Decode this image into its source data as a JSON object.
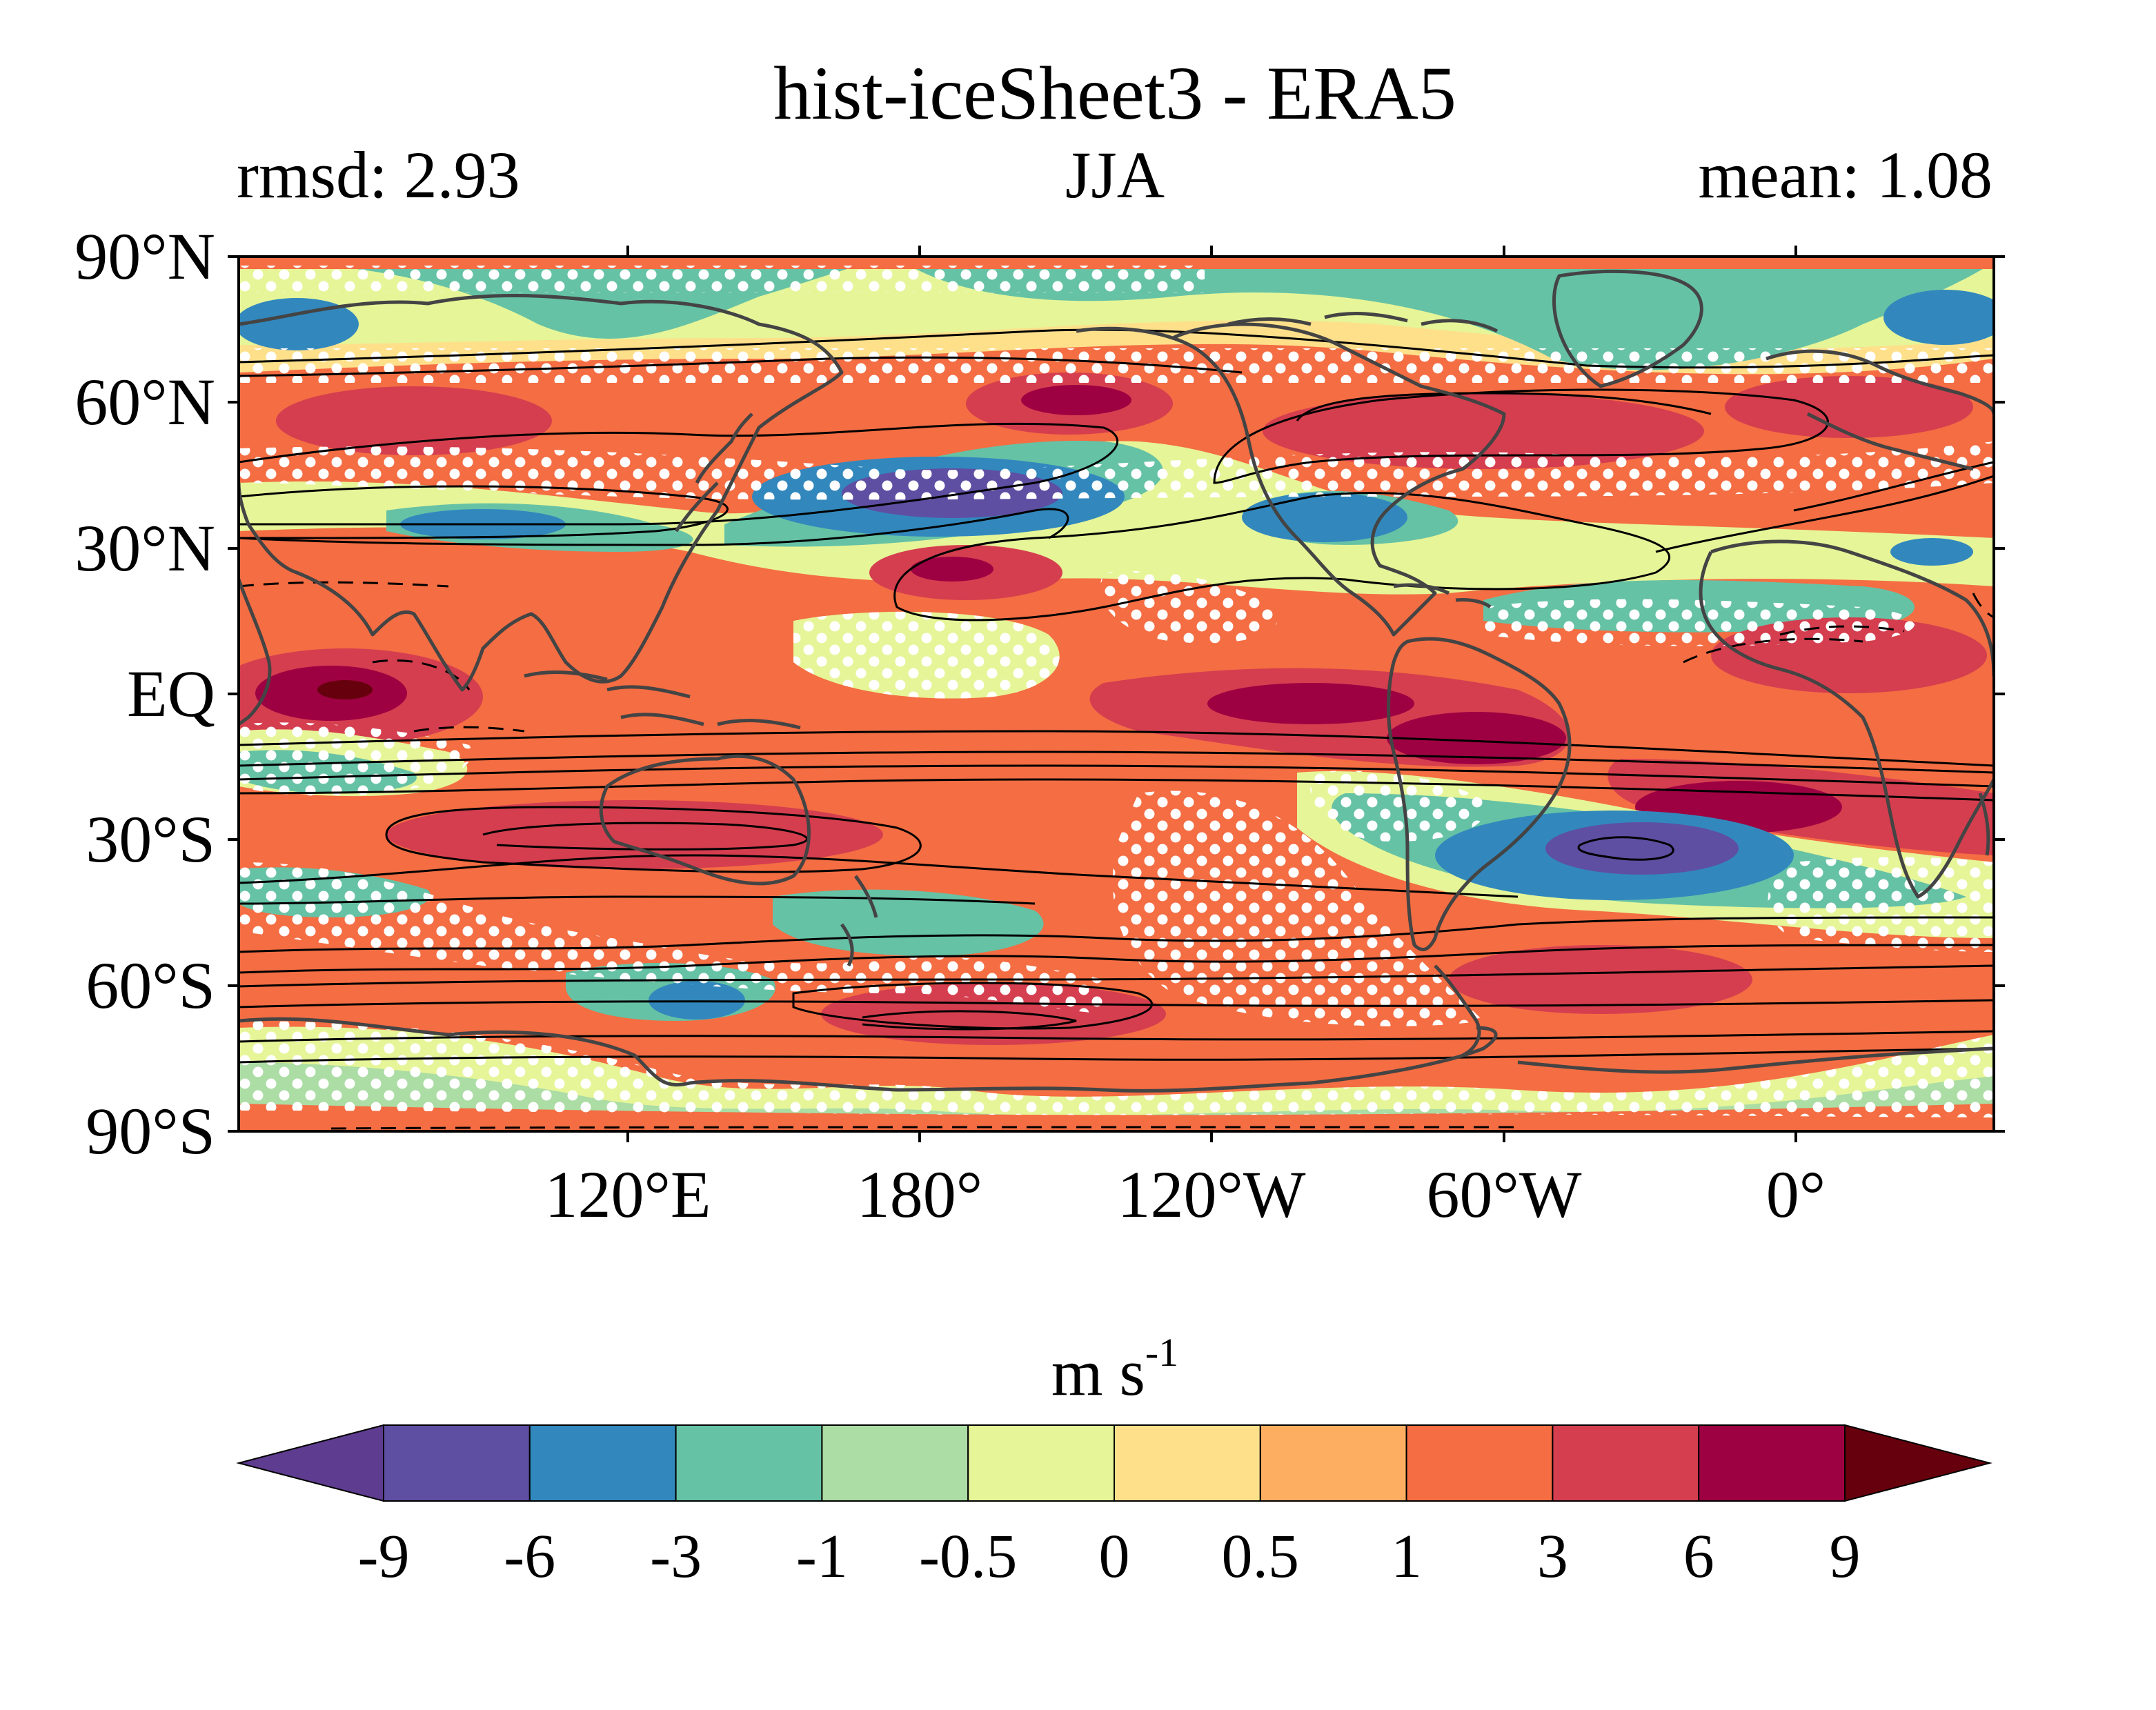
{
  "title": "hist-iceSheet3 - ERA5",
  "subtitle_left": "rmsd: 2.93",
  "subtitle_center": "JJA",
  "subtitle_right": "mean: 1.08",
  "lat_labels": [
    "90°N",
    "60°N",
    "30°N",
    "EQ",
    "30°S",
    "60°S",
    "90°S"
  ],
  "lon_labels": [
    "120°E",
    "180°",
    "120°W",
    "60°W",
    "0°"
  ],
  "colorbar": {
    "unit_base": "m s",
    "unit_exp": "-1",
    "tick_labels": [
      "-9",
      "-6",
      "-3",
      "-1",
      "-0.5",
      "0",
      "0.5",
      "1",
      "3",
      "6",
      "9"
    ],
    "colors": [
      "#5e3c8f",
      "#5e4fa2",
      "#3288bd",
      "#66c2a5",
      "#abdda4",
      "#e6f598",
      "#fee08b",
      "#fdae61",
      "#f46d43",
      "#d53e4f",
      "#9e0142",
      "#67000d"
    ]
  },
  "colors": {
    "coastline": "#444444",
    "contour": "#000000",
    "stipple": "#ffffff"
  }
}
